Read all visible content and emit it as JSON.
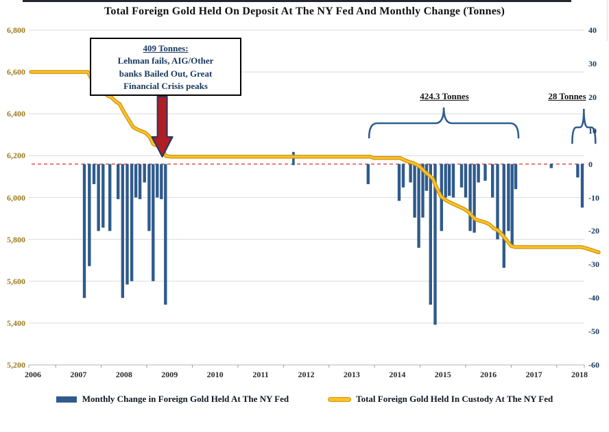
{
  "title": "Total Foreign Gold Held On Deposit At The NY Fed And Monthly Change (Tonnes)",
  "annotation_box": {
    "heading": "409 Tonnes:",
    "lines": [
      "Lehman fails, AIG/Other",
      "banks Bailed Out, Great",
      "Financial Crisis peaks"
    ]
  },
  "annotations": {
    "big_brace_label": "424.3 Tonnes",
    "small_brace_label": "28 Tonnes"
  },
  "legend": {
    "bars_label": "Monthly Change in Foreign Gold Held At The NY Fed",
    "line_label": "Total Foreign Gold Held In Custody At The NY Fed"
  },
  "colors": {
    "bar": "#2F5B8C",
    "line_outer": "#C8920F",
    "line_inner": "#FFC226",
    "zero_line": "#E84A4A",
    "grid": "#DADADA",
    "axis_line": "#C4C4C4",
    "left_axis_text": "#9C7B1E",
    "right_axis_text": "#17375E",
    "x_axis_text": "#2B2B2B",
    "annotation_text": "#17375E",
    "arrow_fill": "#B01E23",
    "arrow_stroke": "#1F3864",
    "brace": "#2E5D8E",
    "title_text": "#121212",
    "top_border": "#23272F"
  },
  "chart_data": {
    "type": "bar",
    "title": "Total Foreign Gold Held On Deposit At The NY Fed And Monthly Change (Tonnes)",
    "xlabel": "",
    "ylabel": "",
    "grid": true,
    "legend_position": "bottom",
    "x_axis": {
      "range": [
        2005.91,
        2018.105
      ],
      "tick_values": [
        2006,
        2007,
        2008,
        2009,
        2010,
        2011,
        2012,
        2013,
        2014,
        2015,
        2016,
        2017,
        2018
      ],
      "tick_labels": [
        "2006",
        "2007",
        "2008",
        "2009",
        "2010",
        "2011",
        "2012",
        "2013",
        "2014",
        "2015",
        "2016",
        "2017",
        "2018"
      ]
    },
    "left_axis": {
      "range": [
        5200,
        6800
      ],
      "tick_values": [
        6800,
        6600,
        6400,
        6200,
        6000,
        5800,
        5600,
        5400,
        5200
      ],
      "tick_labels": [
        "6,800",
        "6,600",
        "6,400",
        "6,200",
        "6,000",
        "5,800",
        "5,600",
        "5,400",
        "5,200"
      ]
    },
    "right_axis": {
      "range": [
        -60,
        40
      ],
      "tick_values": [
        40,
        30,
        20,
        10,
        0,
        -10,
        -20,
        -30,
        -40,
        -50,
        -60
      ],
      "tick_labels": [
        "40",
        "30",
        "20",
        "10",
        "0",
        "-10",
        "-20",
        "-30",
        "-40",
        "-50",
        "-60"
      ]
    },
    "zero_line": 0,
    "series": [
      {
        "name": "Monthly Change in Foreign Gold Held At The NY Fed",
        "kind": "bar",
        "axis": "right",
        "points": [
          [
            2007.13,
            -40
          ],
          [
            2007.24,
            -30.5
          ],
          [
            2007.34,
            -6
          ],
          [
            2007.44,
            -20
          ],
          [
            2007.54,
            -19
          ],
          [
            2007.69,
            -20
          ],
          [
            2007.87,
            -10.5
          ],
          [
            2007.97,
            -40
          ],
          [
            2008.07,
            -36
          ],
          [
            2008.17,
            -35
          ],
          [
            2008.26,
            -10
          ],
          [
            2008.35,
            -10.5
          ],
          [
            2008.45,
            -5.5
          ],
          [
            2008.55,
            -20
          ],
          [
            2008.64,
            -35
          ],
          [
            2008.73,
            -10
          ],
          [
            2008.82,
            -10.5
          ],
          [
            2008.91,
            -42
          ],
          [
            2013.36,
            -6
          ],
          [
            2014.04,
            -11
          ],
          [
            2014.13,
            -7
          ],
          [
            2014.29,
            -5.5
          ],
          [
            2014.38,
            -16
          ],
          [
            2014.47,
            -25
          ],
          [
            2014.56,
            -16
          ],
          [
            2014.64,
            -8
          ],
          [
            2014.73,
            -42
          ],
          [
            2014.83,
            -48
          ],
          [
            2014.97,
            -20
          ],
          [
            2015.06,
            -10
          ],
          [
            2015.14,
            -9.5
          ],
          [
            2015.23,
            -10
          ],
          [
            2015.41,
            -7
          ],
          [
            2015.5,
            -10
          ],
          [
            2015.6,
            -20
          ],
          [
            2015.69,
            -20.5
          ],
          [
            2015.78,
            -5.5
          ],
          [
            2015.93,
            -5
          ],
          [
            2016.09,
            -10
          ],
          [
            2016.2,
            -22.5
          ],
          [
            2016.34,
            -31
          ],
          [
            2016.44,
            -20
          ],
          [
            2016.52,
            -25
          ],
          [
            2016.6,
            -7.5
          ],
          [
            2017.38,
            -1.2
          ],
          [
            2017.96,
            -4
          ],
          [
            2018.06,
            -13
          ]
        ]
      },
      {
        "name": "Total Foreign Gold Held In Custody At The NY Fed",
        "kind": "line",
        "axis": "left",
        "points": [
          [
            2005.96,
            6600
          ],
          [
            2007.21,
            6600
          ],
          [
            2007.3,
            6562
          ],
          [
            2007.4,
            6531
          ],
          [
            2007.48,
            6525
          ],
          [
            2007.56,
            6506
          ],
          [
            2007.64,
            6487
          ],
          [
            2007.73,
            6478
          ],
          [
            2007.82,
            6458
          ],
          [
            2007.9,
            6448
          ],
          [
            2008.0,
            6408
          ],
          [
            2008.1,
            6372
          ],
          [
            2008.2,
            6337
          ],
          [
            2008.28,
            6327
          ],
          [
            2008.38,
            6317
          ],
          [
            2008.46,
            6311
          ],
          [
            2008.56,
            6291
          ],
          [
            2008.64,
            6256
          ],
          [
            2008.74,
            6246
          ],
          [
            2008.82,
            6236
          ],
          [
            2008.92,
            6198
          ],
          [
            2009.04,
            6195
          ],
          [
            2013.4,
            6195
          ],
          [
            2013.48,
            6189
          ],
          [
            2014.06,
            6189
          ],
          [
            2014.16,
            6178
          ],
          [
            2014.26,
            6170
          ],
          [
            2014.36,
            6164
          ],
          [
            2014.46,
            6152
          ],
          [
            2014.54,
            6138
          ],
          [
            2014.62,
            6120
          ],
          [
            2014.7,
            6106
          ],
          [
            2014.78,
            6090
          ],
          [
            2014.86,
            6048
          ],
          [
            2014.96,
            6005
          ],
          [
            2015.06,
            5988
          ],
          [
            2015.16,
            5976
          ],
          [
            2015.26,
            5966
          ],
          [
            2015.36,
            5956
          ],
          [
            2015.46,
            5946
          ],
          [
            2015.56,
            5932
          ],
          [
            2015.64,
            5912
          ],
          [
            2015.72,
            5895
          ],
          [
            2015.82,
            5888
          ],
          [
            2015.92,
            5882
          ],
          [
            2016.02,
            5872
          ],
          [
            2016.12,
            5852
          ],
          [
            2016.22,
            5842
          ],
          [
            2016.32,
            5818
          ],
          [
            2016.42,
            5790
          ],
          [
            2016.5,
            5768
          ],
          [
            2016.6,
            5763
          ],
          [
            2018.04,
            5763
          ],
          [
            2018.14,
            5758
          ],
          [
            2018.28,
            5748
          ],
          [
            2018.42,
            5738
          ]
        ]
      }
    ],
    "small_tick_2011": {
      "t": 2011.72,
      "v_top": 6218,
      "v_bottom": 6155
    },
    "arrow": {
      "t": 2008.84
    },
    "big_brace": {
      "t1": 2013.38,
      "t2": 2016.66
    },
    "small_brace": {
      "t1": 2017.84,
      "t2": 2018.35
    }
  }
}
